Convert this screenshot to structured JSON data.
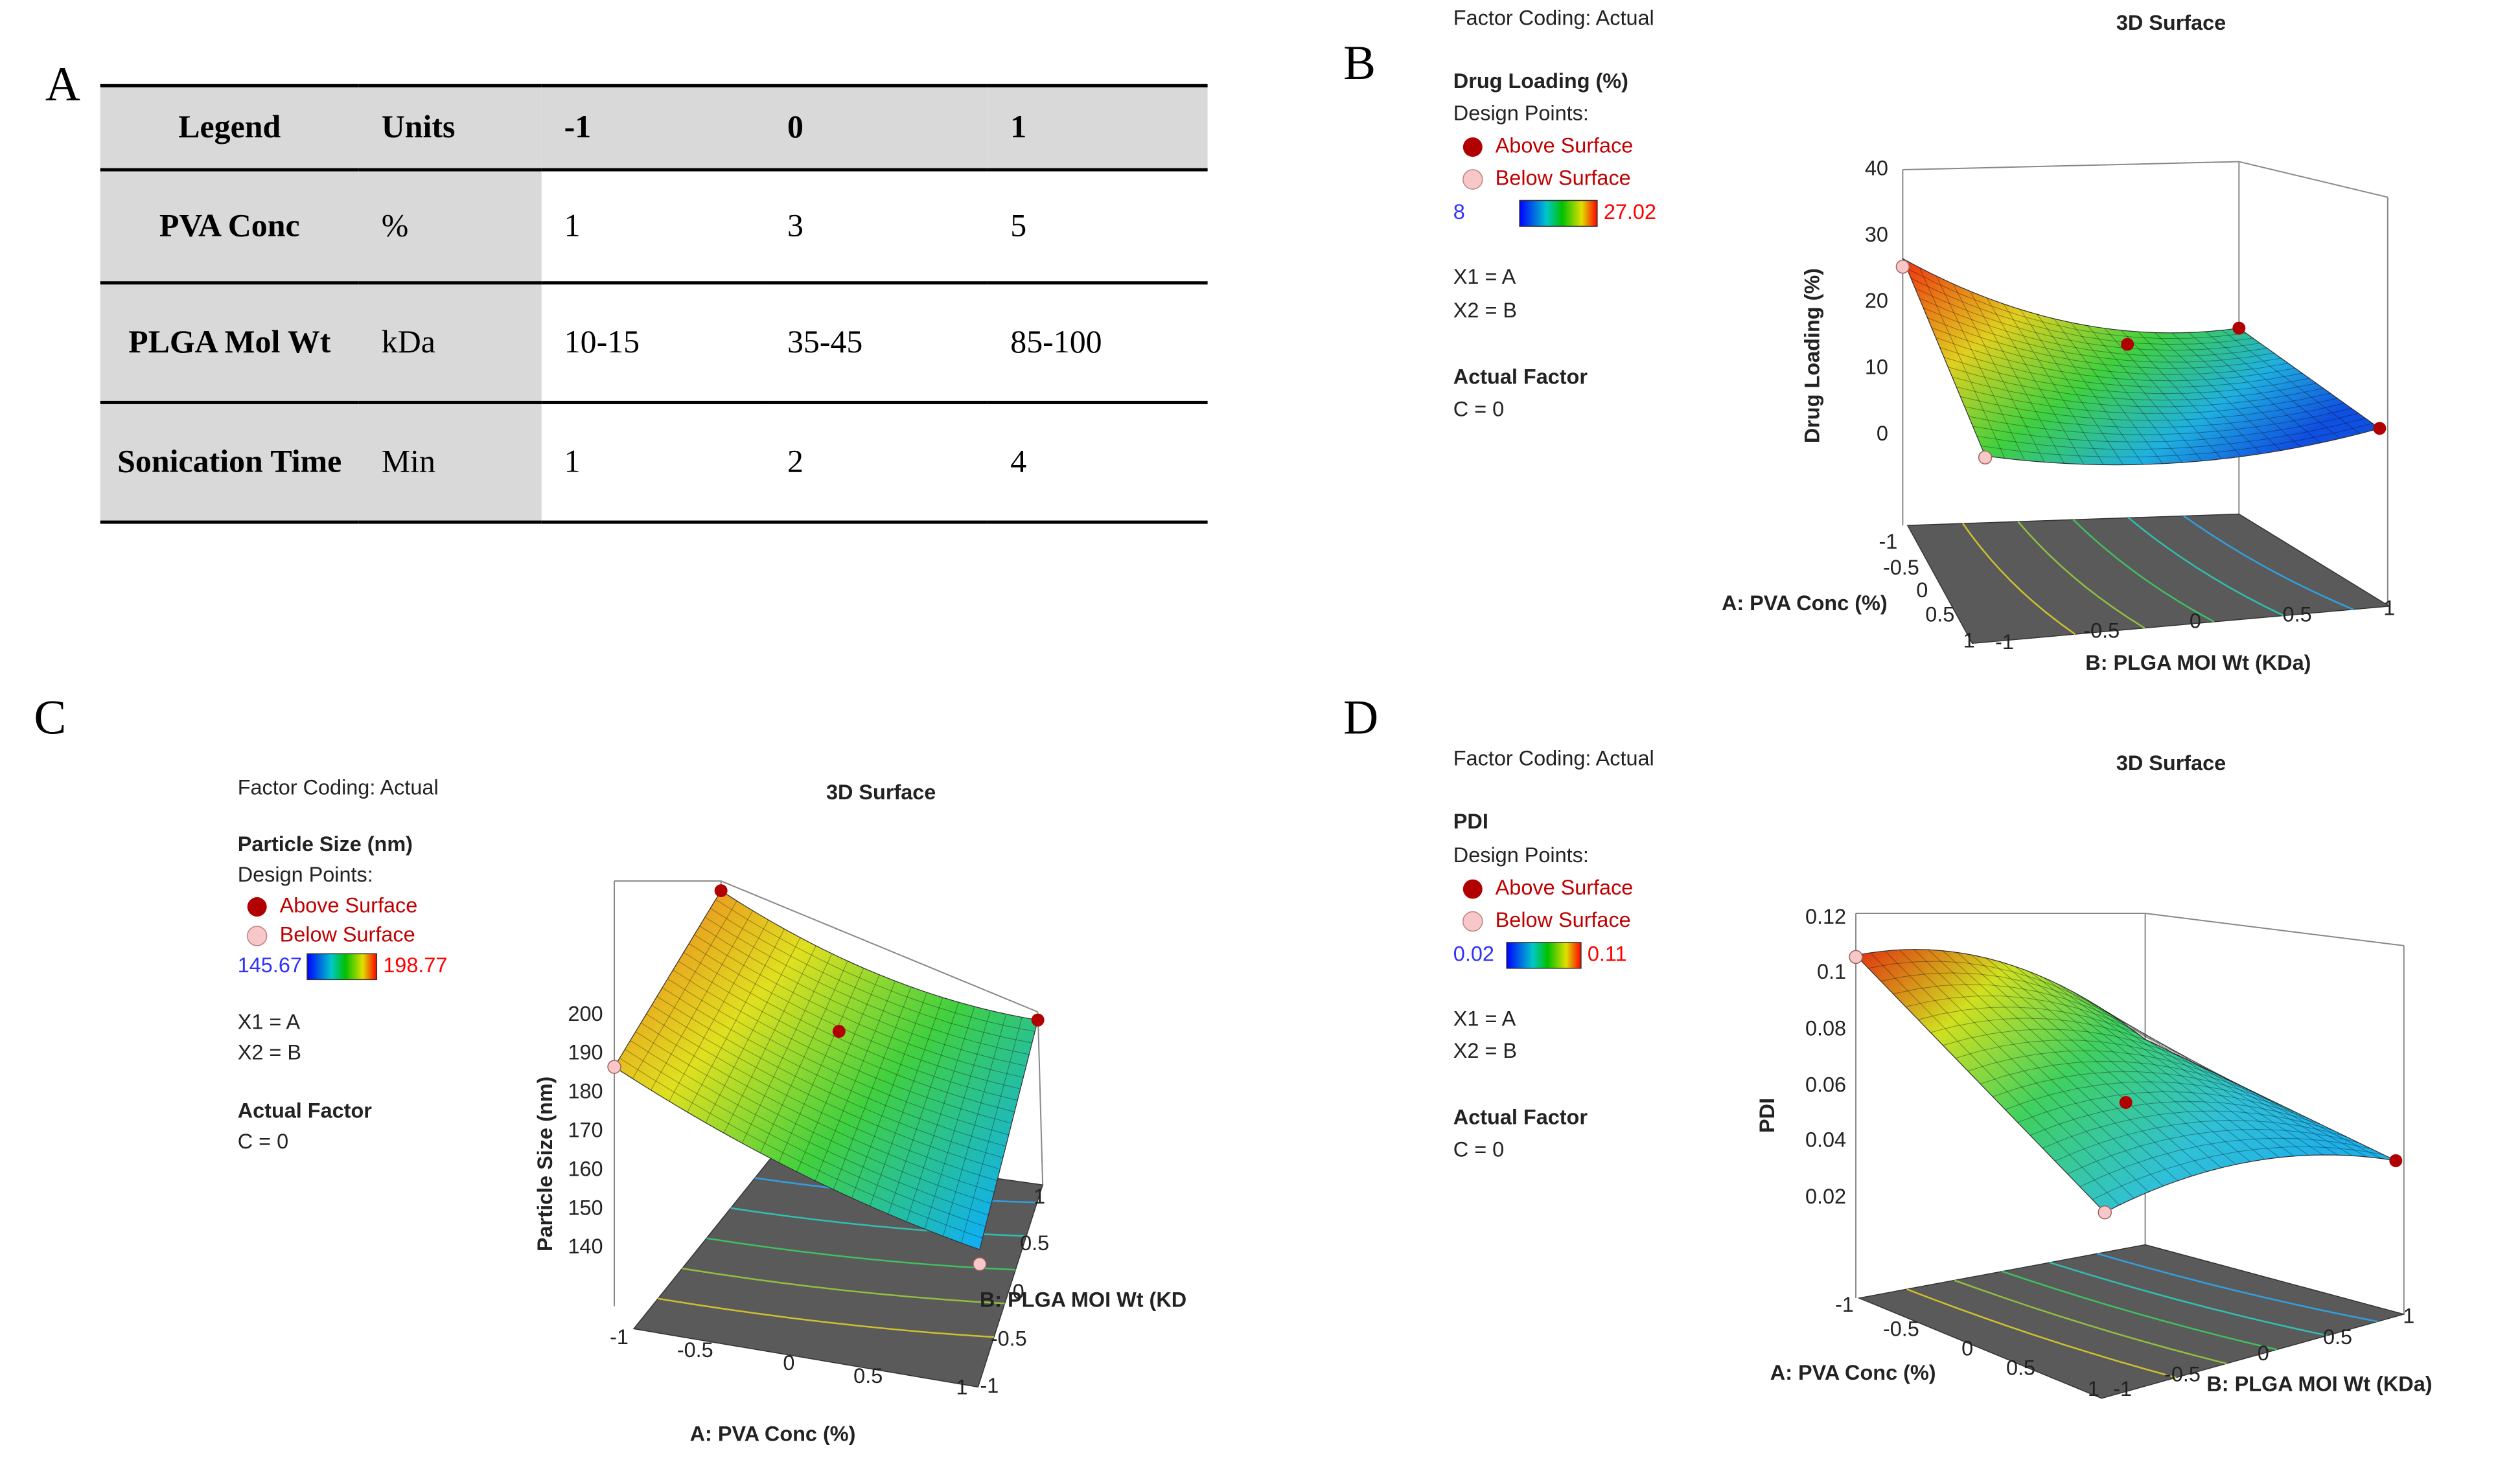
{
  "panel_labels": [
    "A",
    "B",
    "C",
    "D"
  ],
  "table": {
    "header": [
      "Legend",
      "Units",
      "-1",
      "0",
      "1"
    ],
    "rows": [
      [
        "PVA Conc",
        "%",
        "1",
        "3",
        "5"
      ],
      [
        "PLGA Mol Wt",
        "kDa",
        "10-15",
        "35-45",
        "85-100"
      ],
      [
        "Sonication Time",
        "Min",
        "1",
        "2",
        "4"
      ]
    ]
  },
  "plots": [
    {
      "factor_coding": "Factor Coding: Actual",
      "title": "3D Surface",
      "response": "Drug Loading (%)",
      "design_points": "Design Points:",
      "above": "Above Surface",
      "below": "Below Surface",
      "range_low": "8",
      "range_high": "27.02",
      "x1": "X1 = A",
      "x2": "X2 = B",
      "actual_factor": "Actual Factor",
      "c": "C = 0",
      "z_label": "Drug Loading (%)",
      "z_ticks": [
        "40",
        "30",
        "20",
        "10",
        "0"
      ],
      "a_label": "A: PVA Conc (%)",
      "a_ticks": [
        "-1",
        "-0.5",
        "0",
        "0.5",
        "1"
      ],
      "b_label": "B: PLGA MOI Wt (KDa)",
      "b_ticks": [
        "-1",
        "-0.5",
        "0",
        "0.5",
        "1"
      ]
    },
    {
      "factor_coding": "Factor Coding: Actual",
      "title": "3D Surface",
      "response": "Particle Size (nm)",
      "design_points": "Design Points:",
      "above": "Above Surface",
      "below": "Below Surface",
      "range_low": "145.67",
      "range_high": "198.77",
      "x1": "X1 = A",
      "x2": "X2 = B",
      "actual_factor": "Actual Factor",
      "c": "C = 0",
      "z_label": "Particle Size (nm)",
      "z_ticks": [
        "200",
        "190",
        "180",
        "170",
        "160",
        "150",
        "140"
      ],
      "a_label": "A: PVA Conc (%)",
      "a_ticks": [
        "-1",
        "-0.5",
        "0",
        "0.5",
        "1"
      ],
      "b_label": "B: PLGA MOI Wt (KD",
      "b_ticks": [
        "1",
        "0.5",
        "0",
        "-0.5",
        "-1"
      ]
    },
    {
      "factor_coding": "Factor Coding: Actual",
      "title": "3D Surface",
      "response": "PDI",
      "design_points": "Design Points:",
      "above": "Above Surface",
      "below": "Below Surface",
      "range_low": "0.02",
      "range_high": "0.11",
      "x1": "X1 = A",
      "x2": "X2 = B",
      "actual_factor": "Actual Factor",
      "c": "C = 0",
      "z_label": "PDI",
      "z_ticks": [
        "0.12",
        "0.1",
        "0.08",
        "0.06",
        "0.04",
        "0.02"
      ],
      "a_label": "A: PVA Conc (%)",
      "a_ticks": [
        "-1",
        "-0.5",
        "0",
        "0.5",
        "1"
      ],
      "b_label": "B: PLGA MOI Wt (KDa)",
      "b_ticks": [
        "-1",
        "-0.5",
        "0",
        "0.5",
        "1"
      ]
    }
  ]
}
